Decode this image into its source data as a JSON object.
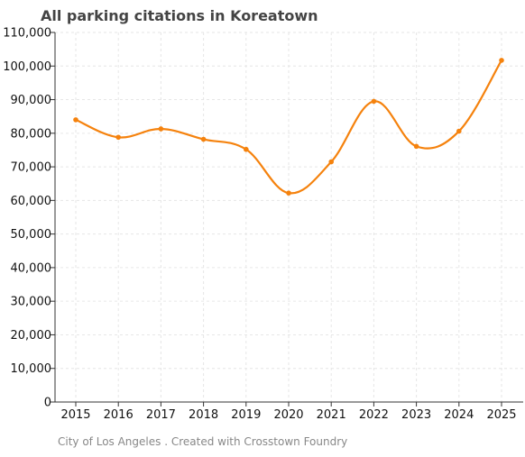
{
  "title": "All parking citations in Koreatown",
  "source": "City of Los Angeles . Created with Crosstown Foundry",
  "colors": {
    "line": "#f5820d",
    "grid": "#e6e6e6",
    "axis": "#333333"
  },
  "chart_data": {
    "type": "line",
    "title": "All parking citations in Koreatown",
    "xlabel": "",
    "ylabel": "",
    "x": [
      "2015",
      "2016",
      "2017",
      "2018",
      "2019",
      "2020",
      "2021",
      "2022",
      "2023",
      "2024",
      "2025"
    ],
    "series": [
      {
        "values": [
          84000,
          78800,
          81300,
          78200,
          75200,
          62200,
          71500,
          89500,
          76100,
          80600,
          101700
        ]
      }
    ],
    "ylim": [
      0,
      110000
    ],
    "yticks": [
      0,
      10000,
      20000,
      30000,
      40000,
      50000,
      60000,
      70000,
      80000,
      90000,
      100000,
      110000
    ],
    "ytick_labels": [
      "0",
      "10,000",
      "20,000",
      "30,000",
      "40,000",
      "50,000",
      "60,000",
      "70,000",
      "80,000",
      "90,000",
      "100,000",
      "110,000"
    ],
    "grid": true,
    "smooth": true,
    "markers": true,
    "legend": "none"
  }
}
